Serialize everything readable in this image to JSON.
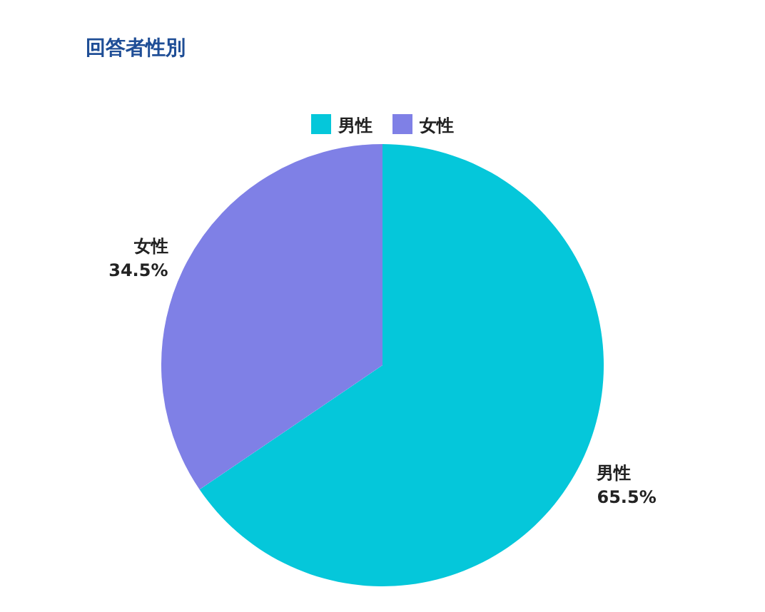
{
  "chart_data": {
    "type": "pie",
    "title": "回答者性別",
    "categories": [
      "男性",
      "女性"
    ],
    "values": [
      65.5,
      34.5
    ],
    "value_labels": [
      "65.5%",
      "34.5%"
    ],
    "colors": [
      "#05c7da",
      "#7f80e6"
    ],
    "legend": "top"
  }
}
